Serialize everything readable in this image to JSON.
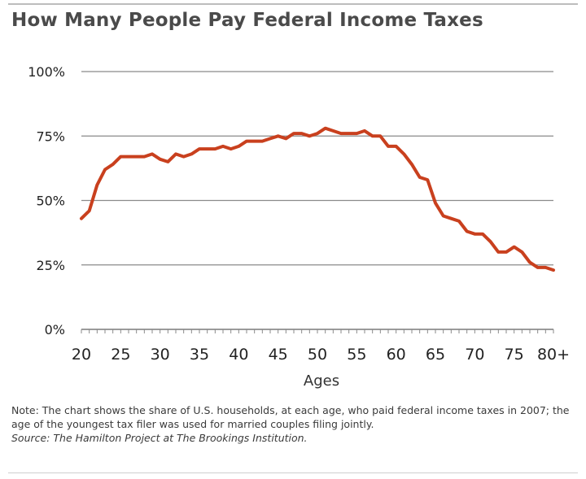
{
  "title": "How Many People Pay Federal Income Taxes",
  "note": "Note: The chart shows the share of U.S. households, at each age, who paid federal income taxes in 2007; the age of the youngest tax filer was used for married couples filing jointly.",
  "source": "Source: The Hamilton Project at The Brookings Institution.",
  "chart_data": {
    "type": "line",
    "title": "How Many People Pay Federal Income Taxes",
    "xlabel": "Ages",
    "ylabel": "",
    "xlim": [
      20,
      80
    ],
    "ylim": [
      0,
      100
    ],
    "y_ticks": [
      "0%",
      "25%",
      "50%",
      "75%",
      "100%"
    ],
    "y_tick_values": [
      0,
      25,
      50,
      75,
      100
    ],
    "x_ticks": [
      "20",
      "25",
      "30",
      "35",
      "40",
      "45",
      "50",
      "55",
      "60",
      "65",
      "70",
      "75",
      "80+"
    ],
    "x_tick_values": [
      20,
      25,
      30,
      35,
      40,
      45,
      50,
      55,
      60,
      65,
      70,
      75,
      80
    ],
    "grid": "horizontal",
    "legend": "none",
    "series": [
      {
        "color": "#c9401e",
        "x": [
          20,
          21,
          22,
          23,
          24,
          25,
          26,
          27,
          28,
          29,
          30,
          31,
          32,
          33,
          34,
          35,
          36,
          37,
          38,
          39,
          40,
          41,
          42,
          43,
          44,
          45,
          46,
          47,
          48,
          49,
          50,
          51,
          52,
          53,
          54,
          55,
          56,
          57,
          58,
          59,
          60,
          61,
          62,
          63,
          64,
          65,
          66,
          67,
          68,
          69,
          70,
          71,
          72,
          73,
          74,
          75,
          76,
          77,
          78,
          79,
          80
        ],
        "values": [
          43,
          46,
          56,
          62,
          64,
          67,
          67,
          67,
          67,
          68,
          66,
          65,
          68,
          67,
          68,
          70,
          70,
          70,
          71,
          70,
          71,
          73,
          73,
          73,
          74,
          75,
          74,
          76,
          76,
          75,
          76,
          78,
          77,
          76,
          76,
          76,
          77,
          75,
          75,
          71,
          71,
          68,
          64,
          59,
          58,
          49,
          44,
          43,
          42,
          38,
          37,
          37,
          34,
          30,
          30,
          32,
          30,
          26,
          24,
          24,
          23
        ]
      }
    ]
  }
}
